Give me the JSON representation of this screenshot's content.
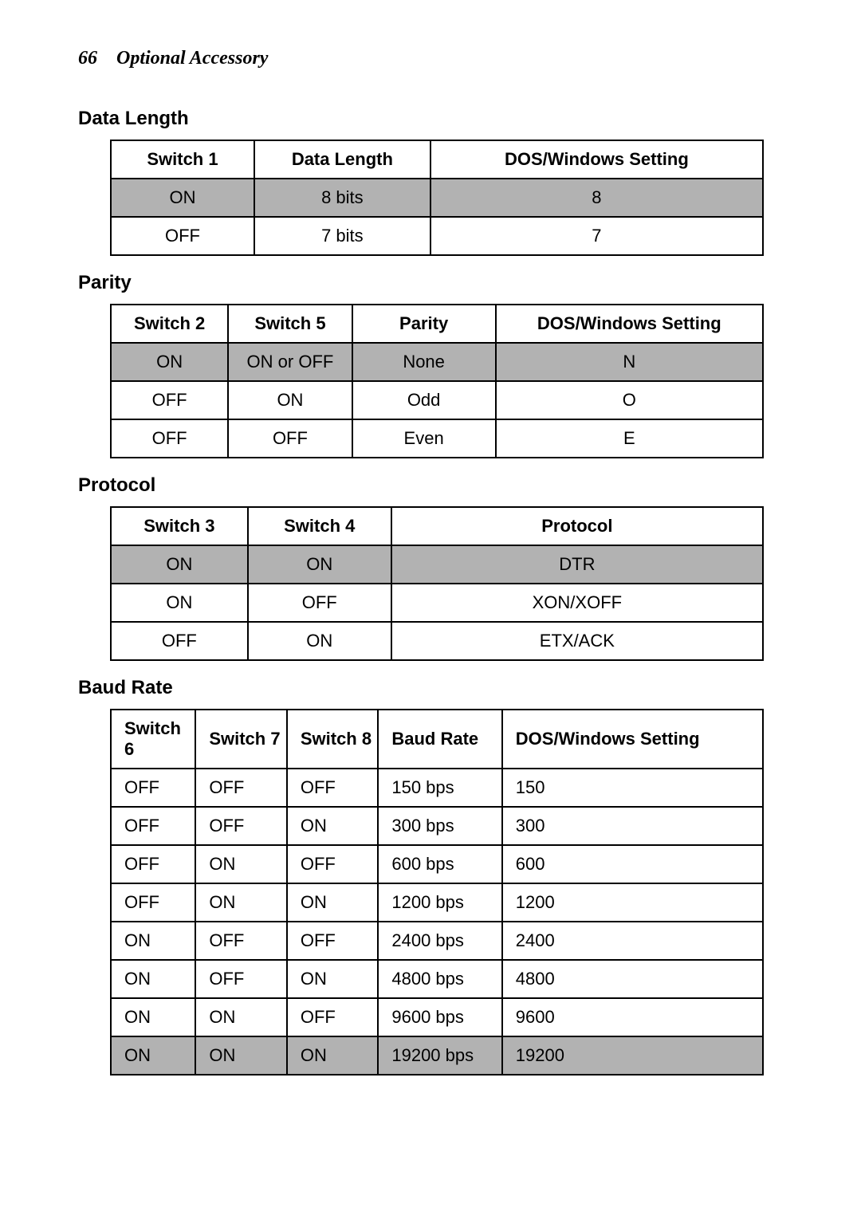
{
  "page": {
    "number": "66",
    "title": "Optional Accessory"
  },
  "styles": {
    "shaded_bg": "#b2b2b2",
    "border_color": "#000000",
    "text_color": "#000000",
    "body_bg": "#ffffff",
    "header_font": "Times New Roman",
    "body_font": "Arial",
    "header_fontsize": 24,
    "section_fontsize": 24,
    "cell_fontsize": 22
  },
  "sections": {
    "data_length": {
      "title": "Data Length",
      "columns": [
        "Switch 1",
        "Data Length",
        "DOS/Windows Setting"
      ],
      "rows": [
        {
          "cells": [
            "ON",
            "8 bits",
            "8"
          ],
          "shaded": true
        },
        {
          "cells": [
            "OFF",
            "7 bits",
            "7"
          ],
          "shaded": false
        }
      ]
    },
    "parity": {
      "title": "Parity",
      "columns": [
        "Switch 2",
        "Switch 5",
        "Parity",
        "DOS/Windows Setting"
      ],
      "rows": [
        {
          "cells": [
            "ON",
            "ON or OFF",
            "None",
            "N"
          ],
          "shaded": true
        },
        {
          "cells": [
            "OFF",
            "ON",
            "Odd",
            "O"
          ],
          "shaded": false
        },
        {
          "cells": [
            "OFF",
            "OFF",
            "Even",
            "E"
          ],
          "shaded": false
        }
      ]
    },
    "protocol": {
      "title": "Protocol",
      "columns": [
        "Switch 3",
        "Switch 4",
        "Protocol"
      ],
      "rows": [
        {
          "cells": [
            "ON",
            "ON",
            "DTR"
          ],
          "shaded": true
        },
        {
          "cells": [
            "ON",
            "OFF",
            "XON/XOFF"
          ],
          "shaded": false
        },
        {
          "cells": [
            "OFF",
            "ON",
            "ETX/ACK"
          ],
          "shaded": false
        }
      ]
    },
    "baud_rate": {
      "title": "Baud Rate",
      "columns": [
        "Switch 6",
        "Switch 7",
        "Switch 8",
        "Baud Rate",
        "DOS/Windows Setting"
      ],
      "rows": [
        {
          "cells": [
            "OFF",
            "OFF",
            "OFF",
            "150 bps",
            "150"
          ],
          "shaded": false
        },
        {
          "cells": [
            "OFF",
            "OFF",
            "ON",
            "300 bps",
            "300"
          ],
          "shaded": false
        },
        {
          "cells": [
            "OFF",
            "ON",
            "OFF",
            "600 bps",
            "600"
          ],
          "shaded": false
        },
        {
          "cells": [
            "OFF",
            "ON",
            "ON",
            "1200 bps",
            "1200"
          ],
          "shaded": false
        },
        {
          "cells": [
            "ON",
            "OFF",
            "OFF",
            "2400 bps",
            "2400"
          ],
          "shaded": false
        },
        {
          "cells": [
            "ON",
            "OFF",
            "ON",
            "4800 bps",
            "4800"
          ],
          "shaded": false
        },
        {
          "cells": [
            "ON",
            "ON",
            "OFF",
            "9600 bps",
            "9600"
          ],
          "shaded": false
        },
        {
          "cells": [
            "ON",
            "ON",
            "ON",
            "19200 bps",
            "19200"
          ],
          "shaded": true
        }
      ]
    }
  }
}
